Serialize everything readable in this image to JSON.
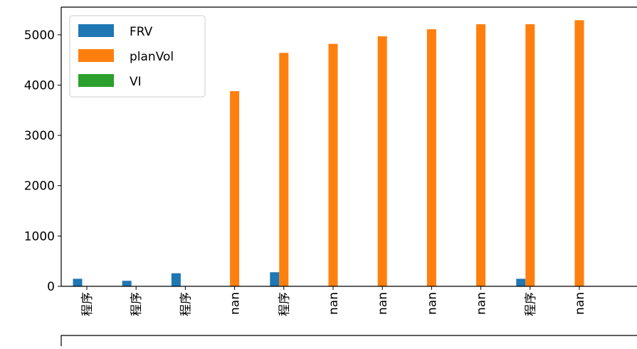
{
  "chart_data": {
    "type": "bar",
    "categories": [
      "程序",
      "程序",
      "程序",
      "nan",
      "程序",
      "nan",
      "nan",
      "nan",
      "nan",
      "程序",
      "nan"
    ],
    "series": [
      {
        "name": "FRV",
        "color": "#1f77b4",
        "values": [
          150,
          110,
          260,
          0,
          280,
          0,
          0,
          0,
          0,
          150,
          0
        ]
      },
      {
        "name": "planVol",
        "color": "#ff7f0e",
        "values": [
          0,
          0,
          0,
          3880,
          4640,
          4820,
          4970,
          5110,
          5210,
          5210,
          5290
        ]
      },
      {
        "name": "VI",
        "color": "#2ca02c",
        "values": [
          0,
          0,
          0,
          0,
          0,
          0,
          0,
          0,
          0,
          0,
          0
        ]
      }
    ],
    "y_ticks": [
      0,
      1000,
      2000,
      3000,
      4000,
      5000
    ],
    "ylim": [
      0,
      5550
    ],
    "legend_position": "top-left",
    "grid": false,
    "title": "",
    "xlabel": "",
    "ylabel": ""
  }
}
